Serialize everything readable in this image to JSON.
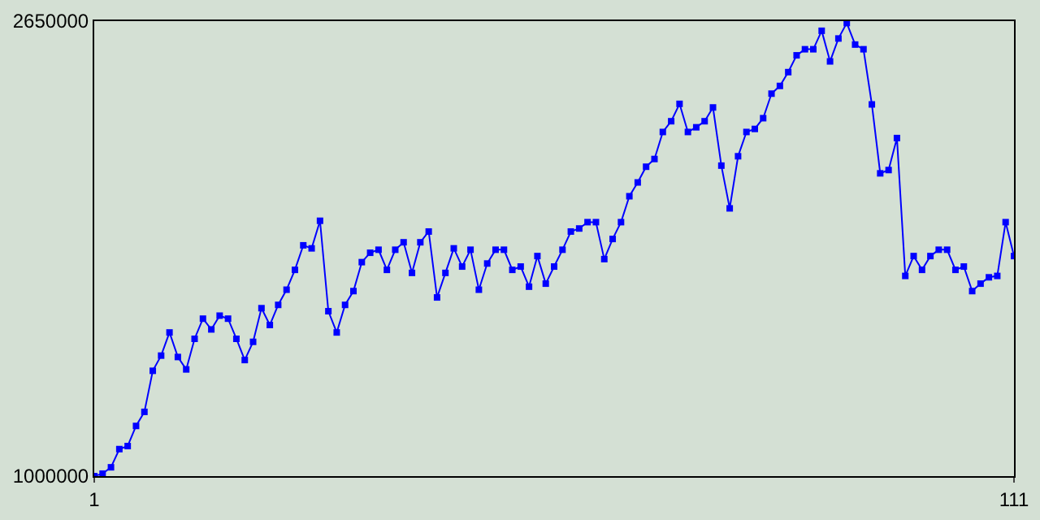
{
  "chart_data": {
    "type": "line",
    "x": [
      1,
      2,
      3,
      4,
      5,
      6,
      7,
      8,
      9,
      10,
      11,
      12,
      13,
      14,
      15,
      16,
      17,
      18,
      19,
      20,
      21,
      22,
      23,
      24,
      25,
      26,
      27,
      28,
      29,
      30,
      31,
      32,
      33,
      34,
      35,
      36,
      37,
      38,
      39,
      40,
      41,
      42,
      43,
      44,
      45,
      46,
      47,
      48,
      49,
      50,
      51,
      52,
      53,
      54,
      55,
      56,
      57,
      58,
      59,
      60,
      61,
      62,
      63,
      64,
      65,
      66,
      67,
      68,
      69,
      70,
      71,
      72,
      73,
      74,
      75,
      76,
      77,
      78,
      79,
      80,
      81,
      82,
      83,
      84,
      85,
      86,
      87,
      88,
      89,
      90,
      91,
      92,
      93,
      94,
      95,
      96,
      97,
      98,
      99,
      100,
      101,
      102,
      103,
      104,
      105,
      106,
      107,
      108,
      109,
      110,
      111
    ],
    "series": [
      {
        "color": "#0000ff",
        "values": [
          1000000,
          1009000,
          1032000,
          1098000,
          1109000,
          1182000,
          1233000,
          1382000,
          1437000,
          1521000,
          1432000,
          1387000,
          1498000,
          1571000,
          1532000,
          1582000,
          1571000,
          1498000,
          1421000,
          1487000,
          1609000,
          1548000,
          1621000,
          1676000,
          1748000,
          1837000,
          1826000,
          1926000,
          1598000,
          1521000,
          1621000,
          1671000,
          1776000,
          1810000,
          1821000,
          1748000,
          1821000,
          1848000,
          1737000,
          1848000,
          1887000,
          1648000,
          1737000,
          1826000,
          1760000,
          1821000,
          1676000,
          1771000,
          1821000,
          1821000,
          1748000,
          1760000,
          1687000,
          1798000,
          1698000,
          1760000,
          1821000,
          1887000,
          1898000,
          1921000,
          1921000,
          1787000,
          1860000,
          1921000,
          2015000,
          2065000,
          2122000,
          2150000,
          2248000,
          2287000,
          2350000,
          2248000,
          2265000,
          2287000,
          2337000,
          2126000,
          1971000,
          2160000,
          2248000,
          2259000,
          2298000,
          2387000,
          2415000,
          2465000,
          2526000,
          2548000,
          2548000,
          2615000,
          2504000,
          2587000,
          2643000,
          2565000,
          2548000,
          2348000,
          2098000,
          2110000,
          2226000,
          1726000,
          1798000,
          1748000,
          1798000,
          1821000,
          1821000,
          1748000,
          1760000,
          1671000,
          1698000,
          1721000,
          1726000,
          1921000,
          1798000
        ]
      }
    ],
    "xlim": [
      1,
      111
    ],
    "xticks": [
      1,
      111
    ],
    "ylim": [
      1000000,
      2650000
    ],
    "yticks": [
      1000000,
      2650000
    ],
    "marker": "square",
    "line_style": "solid"
  }
}
